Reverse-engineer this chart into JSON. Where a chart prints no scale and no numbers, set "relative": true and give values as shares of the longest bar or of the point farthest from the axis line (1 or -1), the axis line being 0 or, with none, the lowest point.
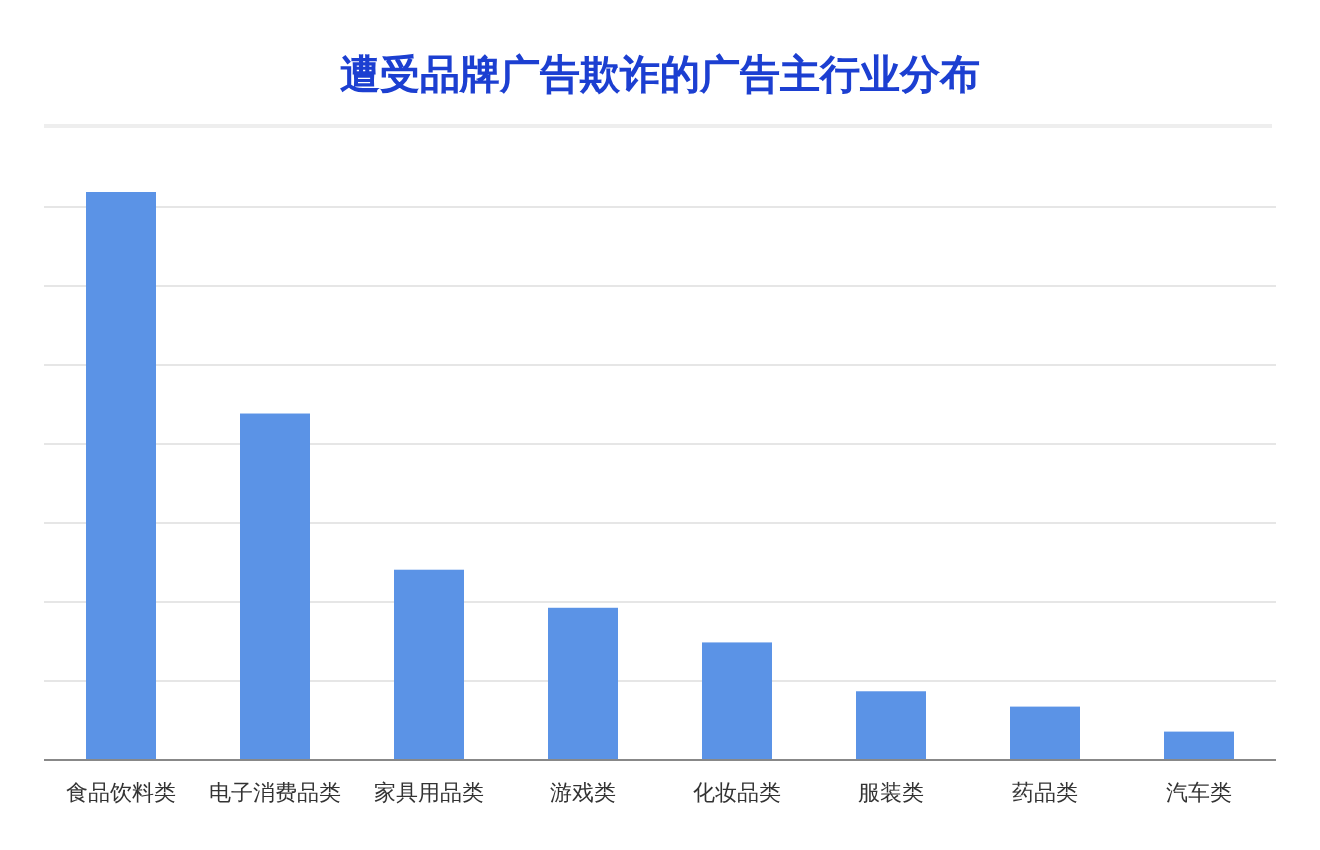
{
  "chart_data": {
    "type": "bar",
    "title": "遭受品牌广告欺诈的广告主行业分布",
    "categories": [
      "食品饮料类",
      "电子消费品类",
      "家具用品类",
      "游戏类",
      "化妆品类",
      "服装类",
      "药品类",
      "汽车类"
    ],
    "values": [
      1,
      0.61,
      0.335,
      0.268,
      0.207,
      0.121,
      0.094,
      0.05
    ],
    "color": "#5b93e6",
    "relative": true,
    "grid": "y"
  }
}
